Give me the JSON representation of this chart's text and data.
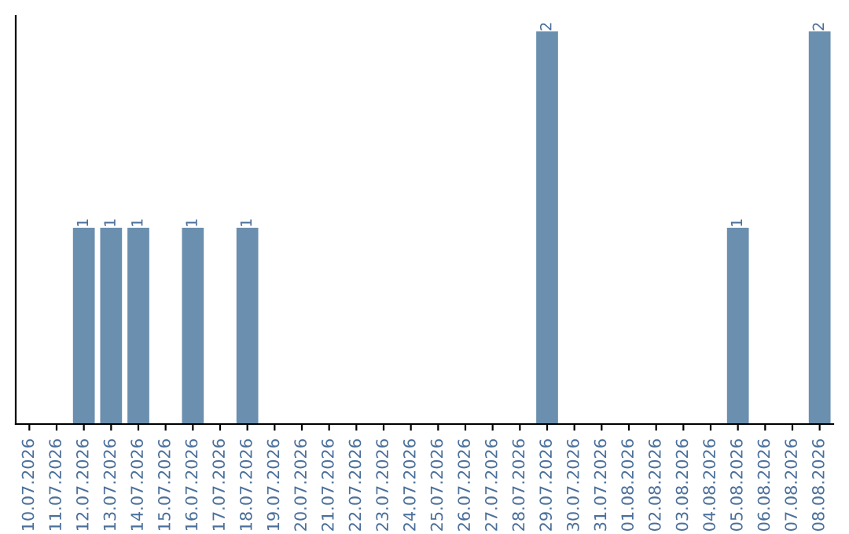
{
  "chart_data": {
    "type": "bar",
    "categories": [
      "10.07.2026",
      "11.07.2026",
      "12.07.2026",
      "13.07.2026",
      "14.07.2026",
      "15.07.2026",
      "16.07.2026",
      "17.07.2026",
      "18.07.2026",
      "19.07.2026",
      "20.07.2026",
      "21.07.2026",
      "22.07.2026",
      "23.07.2026",
      "24.07.2026",
      "25.07.2026",
      "26.07.2026",
      "27.07.2026",
      "28.07.2026",
      "29.07.2026",
      "30.07.2026",
      "31.07.2026",
      "01.08.2026",
      "02.08.2026",
      "03.08.2026",
      "04.08.2026",
      "05.08.2026",
      "06.08.2026",
      "07.08.2026",
      "08.08.2026"
    ],
    "series": [
      {
        "color": "#6b8fae",
        "values": [
          null,
          null,
          1,
          1,
          1,
          null,
          1,
          null,
          1,
          null,
          null,
          null,
          null,
          null,
          null,
          null,
          null,
          null,
          null,
          2,
          null,
          null,
          null,
          null,
          null,
          null,
          1,
          null,
          null,
          2
        ]
      }
    ],
    "data_labels": true,
    "grid": false,
    "legend": false,
    "tick_labels": "x"
  }
}
